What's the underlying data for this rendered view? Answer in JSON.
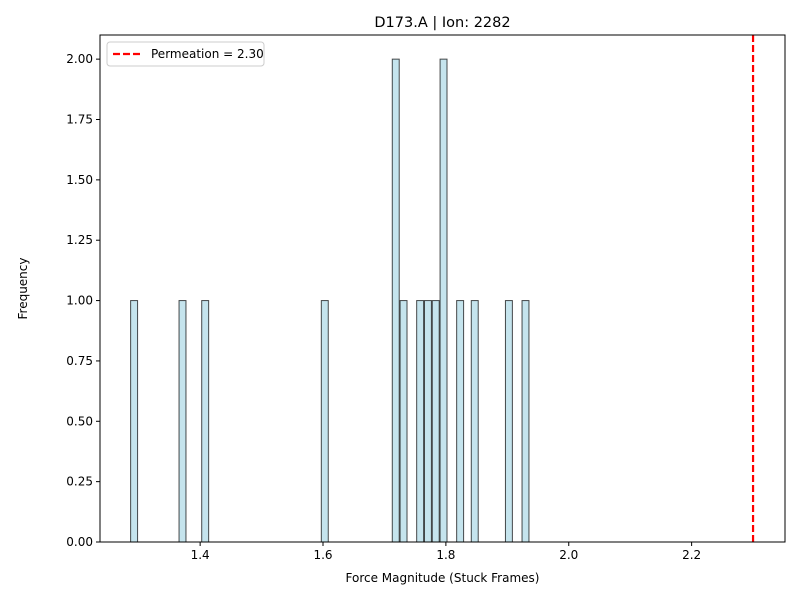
{
  "chart_data": {
    "type": "bar",
    "title": "D173.A | Ion: 2282",
    "xlabel": "Force Magnitude (Stuck Frames)",
    "ylabel": "Frequency",
    "xlim": [
      1.237,
      2.352
    ],
    "ylim": [
      0,
      2.1
    ],
    "bin_width": 0.0113,
    "bins": [
      {
        "x": 1.2925,
        "count": 1
      },
      {
        "x": 1.3713,
        "count": 1
      },
      {
        "x": 1.4082,
        "count": 1
      },
      {
        "x": 1.6029,
        "count": 1
      },
      {
        "x": 1.7184,
        "count": 2
      },
      {
        "x": 1.7311,
        "count": 1
      },
      {
        "x": 1.7581,
        "count": 1
      },
      {
        "x": 1.7708,
        "count": 1
      },
      {
        "x": 1.7835,
        "count": 1
      },
      {
        "x": 1.7962,
        "count": 2
      },
      {
        "x": 1.8232,
        "count": 1
      },
      {
        "x": 1.847,
        "count": 1
      },
      {
        "x": 1.9026,
        "count": 1
      },
      {
        "x": 1.9296,
        "count": 1
      }
    ],
    "x_ticks": [
      {
        "value": 1.4,
        "label": "1.4"
      },
      {
        "value": 1.6,
        "label": "1.6"
      },
      {
        "value": 1.8,
        "label": "1.8"
      },
      {
        "value": 2.0,
        "label": "2.0"
      },
      {
        "value": 2.2,
        "label": "2.2"
      }
    ],
    "y_ticks": [
      {
        "value": 0.0,
        "label": "0.00"
      },
      {
        "value": 0.25,
        "label": "0.25"
      },
      {
        "value": 0.5,
        "label": "0.50"
      },
      {
        "value": 0.75,
        "label": "0.75"
      },
      {
        "value": 1.0,
        "label": "1.00"
      },
      {
        "value": 1.25,
        "label": "1.25"
      },
      {
        "value": 1.5,
        "label": "1.50"
      },
      {
        "value": 1.75,
        "label": "1.75"
      },
      {
        "value": 2.0,
        "label": "2.00"
      }
    ],
    "reference_line": {
      "x": 2.3,
      "label": "Permeation = 2.30",
      "color": "#ff0000",
      "style": "dashed"
    },
    "legend_position": "upper-left",
    "grid": false,
    "bar_color": "#add8e6",
    "bar_edge_color": "#000000"
  }
}
